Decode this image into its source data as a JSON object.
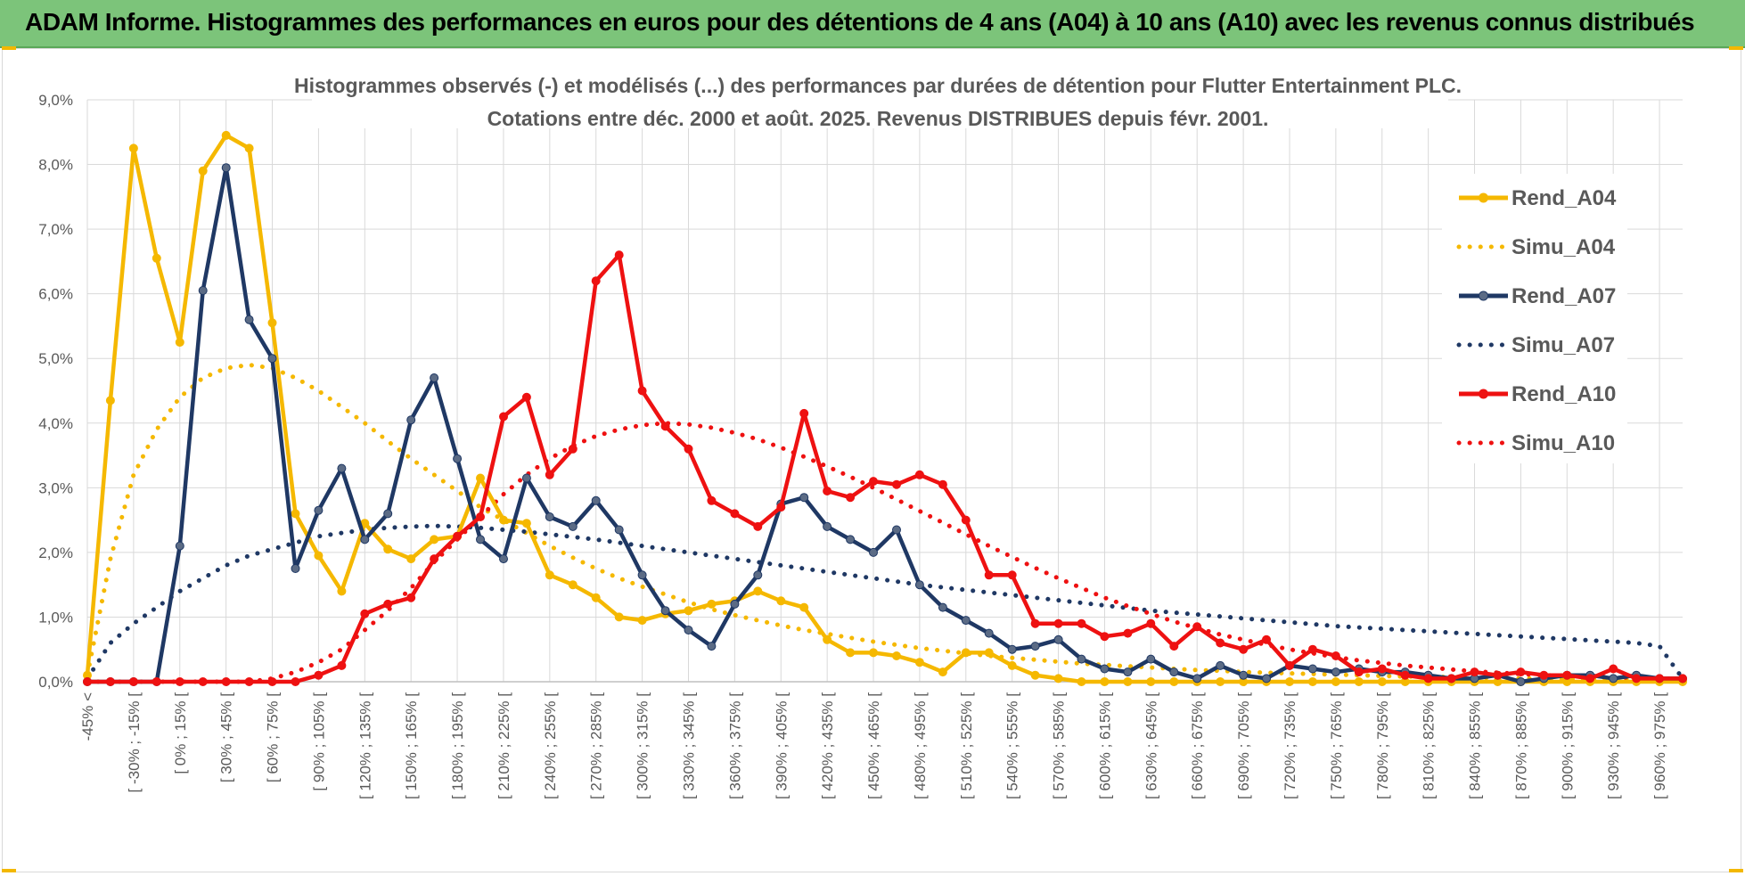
{
  "banner": {
    "title": "ADAM Informe. Histogrammes des performances en euros pour des détentions de 4 ans (A04) à 10 ans (A10) avec les revenus connus distribués"
  },
  "chart_data": {
    "type": "line",
    "title_line1": "Histogrammes observés (-) et modélisés (...) des performances par durées de détention pour Flutter Entertainment PLC.",
    "title_line2": "Cotations entre déc. 2000 et août. 2025. Revenus DISTRIBUES depuis févr. 2001.",
    "xlabel": "",
    "ylabel": "",
    "ylim": [
      0,
      9
    ],
    "y_ticks": [
      "0,0%",
      "1,0%",
      "2,0%",
      "3,0%",
      "4,0%",
      "5,0%",
      "6,0%",
      "7,0%",
      "8,0%",
      "9,0%"
    ],
    "x_tick_labels": [
      "-45% <",
      "[ -30% ; -15% [",
      "[ 0% ; 15% [",
      "[ 30% ; 45% [",
      "[ 60% ; 75% [",
      "[ 90% ; 105% [",
      "[ 120% ; 135% [",
      "[ 150% ; 165% [",
      "[ 180% ; 195% [",
      "[ 210% ; 225% [",
      "[ 240% ; 255% [",
      "[ 270% ; 285% [",
      "[ 300% ; 315% [",
      "[ 330% ; 345% [",
      "[ 360% ; 375% [",
      "[ 390% ; 405% [",
      "[ 420% ; 435% [",
      "[ 450% ; 465% [",
      "[ 480% ; 495% [",
      "[ 510% ; 525% [",
      "[ 540% ; 555% [",
      "[ 570% ; 585% [",
      "[ 600% ; 615% [",
      "[ 630% ; 645% [",
      "[ 660% ; 675% [",
      "[ 690% ; 705% [",
      "[ 720% ; 735% [",
      "[ 750% ; 765% [",
      "[ 780% ; 795% [",
      "[ 810% ; 825% [",
      "[ 840% ; 855% [",
      "[ 870% ; 885% [",
      "[ 900% ; 915% [",
      "[ 930% ; 945% [",
      "[ 960% ; 975% ["
    ],
    "grid": true,
    "legend_position": "right",
    "series": [
      {
        "name": "Rend_A04",
        "color": "#f5b800",
        "style": "solid",
        "values": [
          0.1,
          4.35,
          8.25,
          6.55,
          5.25,
          7.9,
          8.45,
          8.25,
          5.55,
          2.6,
          1.95,
          1.4,
          2.45,
          2.05,
          1.9,
          2.2,
          2.25,
          3.15,
          2.5,
          2.45,
          1.65,
          1.5,
          1.3,
          1.0,
          0.95,
          1.05,
          1.1,
          1.2,
          1.25,
          1.4,
          1.25,
          1.15,
          0.65,
          0.45,
          0.45,
          0.4,
          0.3,
          0.15,
          0.45,
          0.45,
          0.25,
          0.1,
          0.05,
          0.0,
          0.0,
          0.0,
          0.0,
          0.0,
          0.0,
          0.0,
          0.0,
          0.0,
          0.0,
          0.0,
          0.0,
          0.0,
          0.0,
          0.0,
          0.0,
          0.0,
          0.0,
          0.0,
          0.0,
          0.0,
          0.0,
          0.0,
          0.0,
          0.0,
          0.0,
          0.0
        ]
      },
      {
        "name": "Simu_A04",
        "color": "#f5b800",
        "style": "dotted",
        "values": [
          0.1,
          1.9,
          3.2,
          3.9,
          4.4,
          4.7,
          4.85,
          4.9,
          4.85,
          4.7,
          4.5,
          4.25,
          4.0,
          3.72,
          3.45,
          3.2,
          2.95,
          2.7,
          2.5,
          2.3,
          2.1,
          1.92,
          1.75,
          1.6,
          1.47,
          1.35,
          1.23,
          1.12,
          1.03,
          0.95,
          0.87,
          0.8,
          0.74,
          0.68,
          0.62,
          0.57,
          0.52,
          0.48,
          0.44,
          0.4,
          0.37,
          0.34,
          0.31,
          0.28,
          0.26,
          0.24,
          0.22,
          0.2,
          0.18,
          0.17,
          0.15,
          0.14,
          0.13,
          0.12,
          0.11,
          0.1,
          0.09,
          0.08,
          0.08,
          0.07,
          0.06,
          0.06,
          0.05,
          0.05,
          0.04,
          0.04,
          0.04,
          0.03,
          0.03,
          0.0
        ]
      },
      {
        "name": "Rend_A07",
        "color": "#1f3864",
        "style": "solid",
        "values": [
          0.0,
          0.0,
          0.0,
          0.0,
          2.1,
          6.05,
          7.95,
          5.6,
          5.0,
          1.75,
          2.65,
          3.3,
          2.2,
          2.6,
          4.05,
          4.7,
          3.45,
          2.2,
          1.9,
          3.15,
          2.55,
          2.4,
          2.8,
          2.35,
          1.65,
          1.1,
          0.8,
          0.55,
          1.2,
          1.65,
          2.75,
          2.85,
          2.4,
          2.2,
          2.0,
          2.35,
          1.5,
          1.15,
          0.95,
          0.75,
          0.5,
          0.55,
          0.65,
          0.35,
          0.2,
          0.15,
          0.35,
          0.15,
          0.05,
          0.25,
          0.1,
          0.05,
          0.25,
          0.2,
          0.15,
          0.2,
          0.15,
          0.15,
          0.1,
          0.05,
          0.05,
          0.1,
          0.0,
          0.05,
          0.1,
          0.1,
          0.05,
          0.1,
          0.05,
          0.05
        ]
      },
      {
        "name": "Simu_A07",
        "color": "#1f3864",
        "style": "dotted",
        "values": [
          0.05,
          0.6,
          0.9,
          1.15,
          1.4,
          1.6,
          1.8,
          1.95,
          2.05,
          2.15,
          2.25,
          2.3,
          2.35,
          2.38,
          2.4,
          2.41,
          2.4,
          2.38,
          2.35,
          2.32,
          2.28,
          2.24,
          2.2,
          2.15,
          2.1,
          2.05,
          2.0,
          1.95,
          1.9,
          1.85,
          1.8,
          1.75,
          1.7,
          1.65,
          1.6,
          1.55,
          1.5,
          1.46,
          1.42,
          1.38,
          1.34,
          1.3,
          1.26,
          1.22,
          1.18,
          1.14,
          1.1,
          1.07,
          1.04,
          1.01,
          0.98,
          0.95,
          0.92,
          0.89,
          0.86,
          0.84,
          0.82,
          0.8,
          0.78,
          0.76,
          0.74,
          0.72,
          0.7,
          0.68,
          0.66,
          0.64,
          0.62,
          0.6,
          0.55,
          0.05
        ]
      },
      {
        "name": "Rend_A10",
        "color": "#ee1111",
        "style": "solid",
        "values": [
          0.0,
          0.0,
          0.0,
          0.0,
          0.0,
          0.0,
          0.0,
          0.0,
          0.0,
          0.0,
          0.1,
          0.25,
          1.05,
          1.2,
          1.3,
          1.9,
          2.25,
          2.55,
          4.1,
          4.4,
          3.2,
          3.6,
          6.2,
          6.6,
          4.5,
          3.95,
          3.6,
          2.8,
          2.6,
          2.4,
          2.7,
          4.15,
          2.95,
          2.85,
          3.1,
          3.05,
          3.2,
          3.05,
          2.5,
          1.65,
          1.65,
          0.9,
          0.9,
          0.9,
          0.7,
          0.75,
          0.9,
          0.55,
          0.85,
          0.6,
          0.5,
          0.65,
          0.25,
          0.5,
          0.4,
          0.15,
          0.2,
          0.1,
          0.05,
          0.05,
          0.15,
          0.1,
          0.15,
          0.1,
          0.1,
          0.05,
          0.2,
          0.05,
          0.05,
          0.05
        ]
      },
      {
        "name": "Simu_A10",
        "color": "#ee1111",
        "style": "dotted",
        "values": [
          0.0,
          0.0,
          0.0,
          0.0,
          0.0,
          0.0,
          0.0,
          0.0,
          0.05,
          0.15,
          0.3,
          0.5,
          0.8,
          1.1,
          1.45,
          1.85,
          2.2,
          2.55,
          2.9,
          3.2,
          3.45,
          3.65,
          3.8,
          3.9,
          3.97,
          4.0,
          3.98,
          3.93,
          3.85,
          3.75,
          3.62,
          3.48,
          3.33,
          3.17,
          3.0,
          2.82,
          2.64,
          2.46,
          2.28,
          2.1,
          1.93,
          1.76,
          1.6,
          1.45,
          1.3,
          1.17,
          1.05,
          0.93,
          0.83,
          0.73,
          0.65,
          0.57,
          0.5,
          0.44,
          0.38,
          0.33,
          0.29,
          0.25,
          0.22,
          0.19,
          0.16,
          0.14,
          0.12,
          0.1,
          0.09,
          0.08,
          0.07,
          0.06,
          0.05,
          0.04
        ]
      }
    ]
  }
}
